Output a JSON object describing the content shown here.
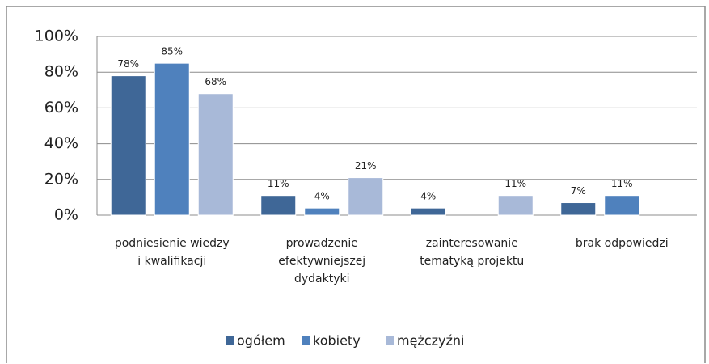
{
  "chart_data": {
    "type": "bar",
    "categories": [
      "podniesienie wiedzy\ni kwalifikacji",
      "prowadzenie\nefektywniejszej\ndydaktyki",
      "zainteresowanie\ntematyką projektu",
      "brak odpowiedzi"
    ],
    "series": [
      {
        "name": "ogółem",
        "color": "#3f6797",
        "values": [
          78,
          11,
          4,
          7
        ],
        "value_labels": [
          "78%",
          "11%",
          "4%",
          "7%"
        ]
      },
      {
        "name": "kobiety",
        "color": "#4f81bd",
        "values": [
          85,
          4,
          null,
          11
        ],
        "value_labels": [
          "85%",
          "4%",
          null,
          "11%"
        ]
      },
      {
        "name": "mężczyźni",
        "color": "#a8b9d8",
        "values": [
          68,
          21,
          11,
          null
        ],
        "value_labels": [
          "68%",
          "21%",
          "11%",
          null
        ]
      }
    ],
    "ylim": [
      0,
      100
    ],
    "yticks": [
      {
        "value": 0,
        "label": "0%"
      },
      {
        "value": 20,
        "label": "20%"
      },
      {
        "value": 40,
        "label": "40%"
      },
      {
        "value": 60,
        "label": "60%"
      },
      {
        "value": 80,
        "label": "80%"
      },
      {
        "value": 100,
        "label": "100%"
      }
    ],
    "grid": true,
    "legend": "bottom"
  }
}
